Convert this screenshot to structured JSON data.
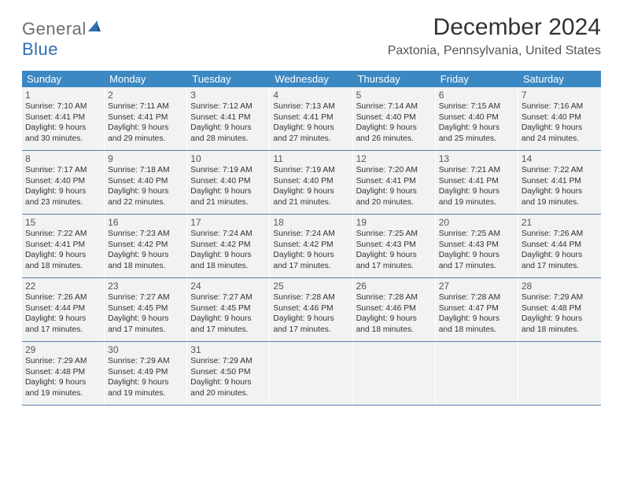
{
  "logo": {
    "line1": "General",
    "line2": "Blue"
  },
  "title": "December 2024",
  "location": "Paxtonia, Pennsylvania, United States",
  "colors": {
    "header_bg": "#3b88c3",
    "cell_bg": "#f1f2f2",
    "week_border": "#5a7fa6",
    "logo_gray": "#6e6e6e",
    "logo_blue": "#2f6fb3"
  },
  "weekdays": [
    "Sunday",
    "Monday",
    "Tuesday",
    "Wednesday",
    "Thursday",
    "Friday",
    "Saturday"
  ],
  "days": [
    {
      "n": "1",
      "sr": "7:10 AM",
      "ss": "4:41 PM",
      "dl": "9 hours and 30 minutes."
    },
    {
      "n": "2",
      "sr": "7:11 AM",
      "ss": "4:41 PM",
      "dl": "9 hours and 29 minutes."
    },
    {
      "n": "3",
      "sr": "7:12 AM",
      "ss": "4:41 PM",
      "dl": "9 hours and 28 minutes."
    },
    {
      "n": "4",
      "sr": "7:13 AM",
      "ss": "4:41 PM",
      "dl": "9 hours and 27 minutes."
    },
    {
      "n": "5",
      "sr": "7:14 AM",
      "ss": "4:40 PM",
      "dl": "9 hours and 26 minutes."
    },
    {
      "n": "6",
      "sr": "7:15 AM",
      "ss": "4:40 PM",
      "dl": "9 hours and 25 minutes."
    },
    {
      "n": "7",
      "sr": "7:16 AM",
      "ss": "4:40 PM",
      "dl": "9 hours and 24 minutes."
    },
    {
      "n": "8",
      "sr": "7:17 AM",
      "ss": "4:40 PM",
      "dl": "9 hours and 23 minutes."
    },
    {
      "n": "9",
      "sr": "7:18 AM",
      "ss": "4:40 PM",
      "dl": "9 hours and 22 minutes."
    },
    {
      "n": "10",
      "sr": "7:19 AM",
      "ss": "4:40 PM",
      "dl": "9 hours and 21 minutes."
    },
    {
      "n": "11",
      "sr": "7:19 AM",
      "ss": "4:40 PM",
      "dl": "9 hours and 21 minutes."
    },
    {
      "n": "12",
      "sr": "7:20 AM",
      "ss": "4:41 PM",
      "dl": "9 hours and 20 minutes."
    },
    {
      "n": "13",
      "sr": "7:21 AM",
      "ss": "4:41 PM",
      "dl": "9 hours and 19 minutes."
    },
    {
      "n": "14",
      "sr": "7:22 AM",
      "ss": "4:41 PM",
      "dl": "9 hours and 19 minutes."
    },
    {
      "n": "15",
      "sr": "7:22 AM",
      "ss": "4:41 PM",
      "dl": "9 hours and 18 minutes."
    },
    {
      "n": "16",
      "sr": "7:23 AM",
      "ss": "4:42 PM",
      "dl": "9 hours and 18 minutes."
    },
    {
      "n": "17",
      "sr": "7:24 AM",
      "ss": "4:42 PM",
      "dl": "9 hours and 18 minutes."
    },
    {
      "n": "18",
      "sr": "7:24 AM",
      "ss": "4:42 PM",
      "dl": "9 hours and 17 minutes."
    },
    {
      "n": "19",
      "sr": "7:25 AM",
      "ss": "4:43 PM",
      "dl": "9 hours and 17 minutes."
    },
    {
      "n": "20",
      "sr": "7:25 AM",
      "ss": "4:43 PM",
      "dl": "9 hours and 17 minutes."
    },
    {
      "n": "21",
      "sr": "7:26 AM",
      "ss": "4:44 PM",
      "dl": "9 hours and 17 minutes."
    },
    {
      "n": "22",
      "sr": "7:26 AM",
      "ss": "4:44 PM",
      "dl": "9 hours and 17 minutes."
    },
    {
      "n": "23",
      "sr": "7:27 AM",
      "ss": "4:45 PM",
      "dl": "9 hours and 17 minutes."
    },
    {
      "n": "24",
      "sr": "7:27 AM",
      "ss": "4:45 PM",
      "dl": "9 hours and 17 minutes."
    },
    {
      "n": "25",
      "sr": "7:28 AM",
      "ss": "4:46 PM",
      "dl": "9 hours and 17 minutes."
    },
    {
      "n": "26",
      "sr": "7:28 AM",
      "ss": "4:46 PM",
      "dl": "9 hours and 18 minutes."
    },
    {
      "n": "27",
      "sr": "7:28 AM",
      "ss": "4:47 PM",
      "dl": "9 hours and 18 minutes."
    },
    {
      "n": "28",
      "sr": "7:29 AM",
      "ss": "4:48 PM",
      "dl": "9 hours and 18 minutes."
    },
    {
      "n": "29",
      "sr": "7:29 AM",
      "ss": "4:48 PM",
      "dl": "9 hours and 19 minutes."
    },
    {
      "n": "30",
      "sr": "7:29 AM",
      "ss": "4:49 PM",
      "dl": "9 hours and 19 minutes."
    },
    {
      "n": "31",
      "sr": "7:29 AM",
      "ss": "4:50 PM",
      "dl": "9 hours and 20 minutes."
    }
  ],
  "labels": {
    "sunrise": "Sunrise: ",
    "sunset": "Sunset: ",
    "daylight": "Daylight: "
  },
  "layout": {
    "columns": 7,
    "trailing_empty": 4
  }
}
